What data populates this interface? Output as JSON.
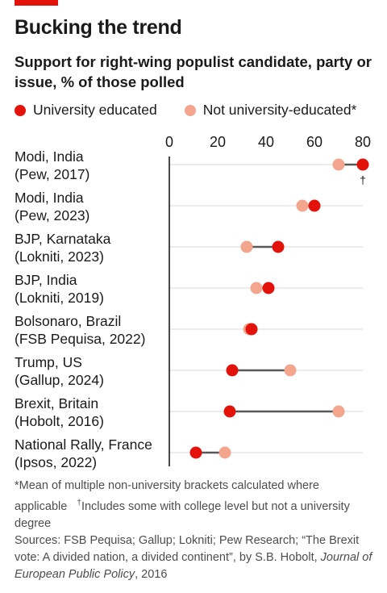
{
  "brand": {
    "bar_color": "#e3120b"
  },
  "header": {
    "title": "Bucking the trend",
    "subtitle": "Support for right-wing populist candidate, party or issue, % of those polled"
  },
  "legend": {
    "series_a": "University educated",
    "series_b": "Not university-educated*"
  },
  "colors": {
    "university": "#e3120b",
    "non_university": "#f4a58e",
    "connector": "#595959",
    "grid": "#d9d9d9",
    "axis": "#1a1a1a"
  },
  "chart_data": {
    "type": "dot-range",
    "xlim": [
      0,
      80
    ],
    "ticks": [
      0,
      20,
      40,
      60,
      80
    ],
    "rows": [
      {
        "label1": "Modi, India",
        "label2": "(Pew, 2017)",
        "university": 80,
        "non_university": 70,
        "marker": "†"
      },
      {
        "label1": "Modi, India",
        "label2": "(Pew, 2023)",
        "university": 60,
        "non_university": 55
      },
      {
        "label1": "BJP, Karnataka",
        "label2": "(Lokniti, 2023)",
        "university": 45,
        "non_university": 32
      },
      {
        "label1": "BJP, India",
        "label2": "(Lokniti, 2019)",
        "university": 41,
        "non_university": 36
      },
      {
        "label1": "Bolsonaro, Brazil",
        "label2": "(FSB Pequisa, 2022)",
        "university": 34,
        "non_university": 33
      },
      {
        "label1": "Trump, US",
        "label2": "(Gallup, 2024)",
        "university": 26,
        "non_university": 50
      },
      {
        "label1": "Brexit, Britain",
        "label2": "(Hobolt, 2016)",
        "university": 25,
        "non_university": 70
      },
      {
        "label1": "National Rally, France",
        "label2": "(Ipsos, 2022)",
        "university": 11,
        "non_university": 23
      }
    ]
  },
  "notes": {
    "footnote_a": "*Mean of multiple non-university brackets calculated where applicable",
    "dagger": "†",
    "footnote_b": "Includes some with college level but not a university degree",
    "sources_a": "Sources: FSB Pequisa; Gallup; Lokniti; Pew Research; “The Brexit vote: A divided nation, a divided continent”, by S.B. Hobolt,",
    "sources_journal": "Journal of European Public Policy",
    "sources_b": ", 2016"
  }
}
